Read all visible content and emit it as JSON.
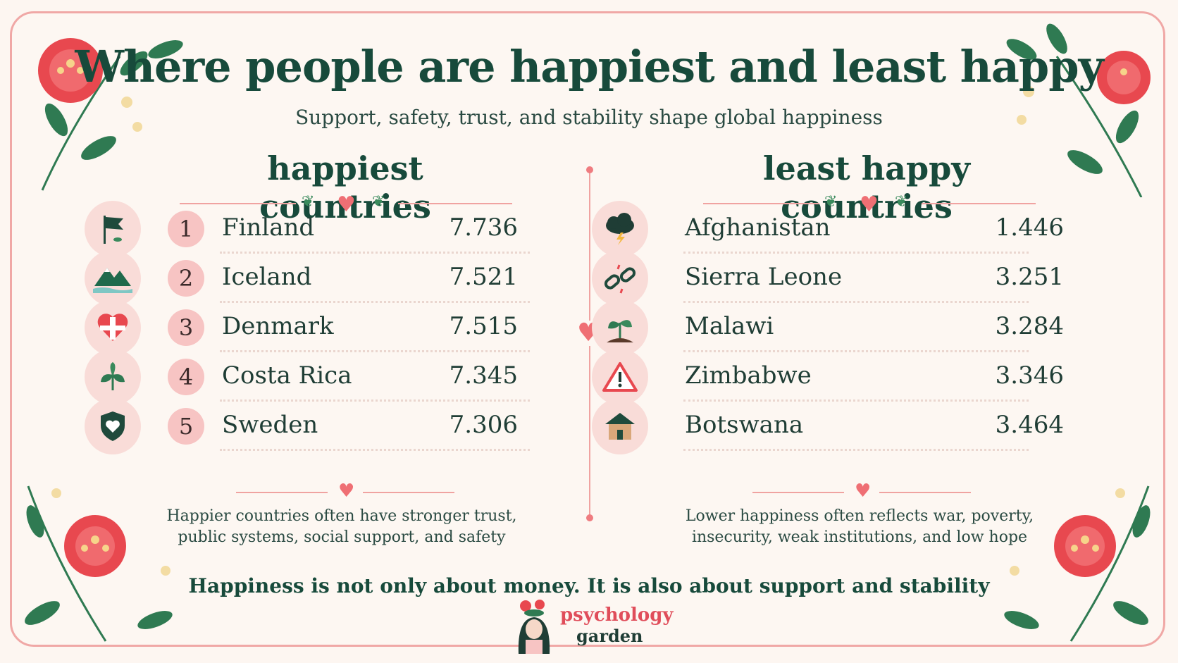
{
  "header": {
    "title": "Where people are happiest and least happy",
    "subtitle": "Support, safety, trust, and stability shape global happiness"
  },
  "happiest": {
    "heading": "happiest countries",
    "items": [
      {
        "rank": "1",
        "country": "Finland",
        "score": "7.736",
        "icon": "flag-icon"
      },
      {
        "rank": "2",
        "country": "Iceland",
        "score": "7.521",
        "icon": "mountain-icon"
      },
      {
        "rank": "3",
        "country": "Denmark",
        "score": "7.515",
        "icon": "heart-cross-icon"
      },
      {
        "rank": "4",
        "country": "Costa Rica",
        "score": "7.345",
        "icon": "leaf-icon"
      },
      {
        "rank": "5",
        "country": "Sweden",
        "score": "7.306",
        "icon": "shield-heart-icon"
      }
    ],
    "note_line1": "Happier countries often have stronger trust,",
    "note_line2": "public systems, social support, and safety"
  },
  "least_happy": {
    "heading": "least happy countries",
    "items": [
      {
        "country": "Afghanistan",
        "score": "1.446",
        "icon": "storm-cloud-icon"
      },
      {
        "country": "Sierra Leone",
        "score": "3.251",
        "icon": "broken-chain-icon"
      },
      {
        "country": "Malawi",
        "score": "3.284",
        "icon": "sprout-icon"
      },
      {
        "country": "Zimbabwe",
        "score": "3.346",
        "icon": "warning-icon"
      },
      {
        "country": "Botswana",
        "score": "3.464",
        "icon": "house-icon"
      }
    ],
    "note_line1": "Lower happiness often reflects war, poverty,",
    "note_line2": "insecurity, weak institutions, and low hope"
  },
  "footer": {
    "tagline": "Happiness is not only about money. It is also about support and stability",
    "brand_line1": "psychology",
    "brand_line2": "garden"
  },
  "colors": {
    "accent": "#ef6f74",
    "title": "#174a3b",
    "background": "#fdf7f2",
    "badge": "#f7c4c3"
  }
}
